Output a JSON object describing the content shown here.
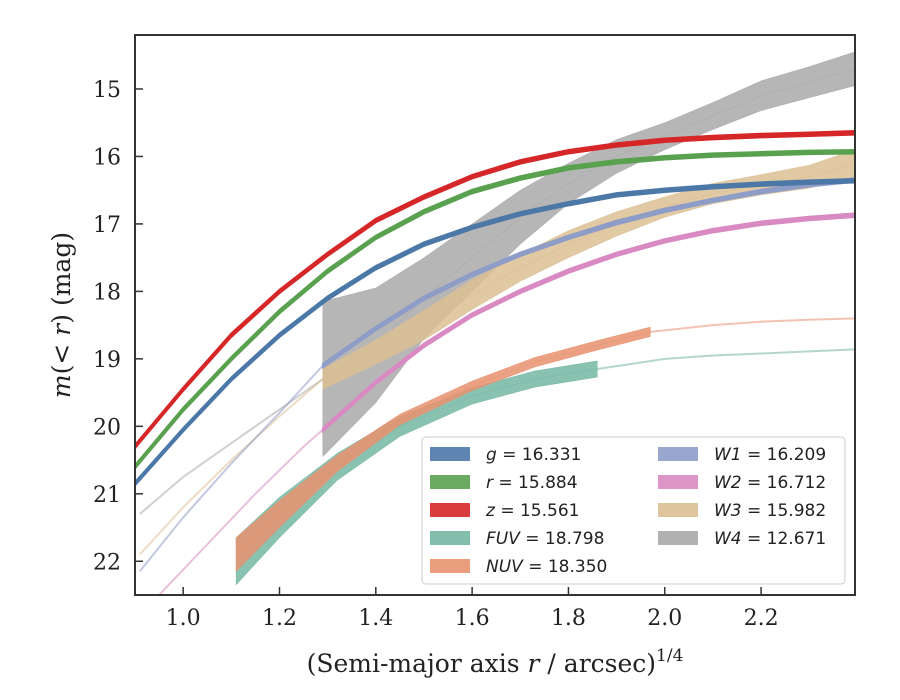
{
  "chart_data": {
    "type": "line",
    "title": "",
    "xlabel": {
      "prefix": "(Semi-major axis ",
      "var": "r",
      "suffix": " / arcsec)",
      "sup": "1/4"
    },
    "ylabel": {
      "prefix": "m(",
      "var": "< r",
      "suffix": ") (mag)"
    },
    "xlim": [
      0.9,
      2.395
    ],
    "ylim": [
      22.5,
      14.2
    ],
    "y_inverted": true,
    "xticks": [
      1.0,
      1.2,
      1.4,
      1.6,
      1.8,
      2.0,
      2.2
    ],
    "xtick_labels": [
      "1.0",
      "1.2",
      "1.4",
      "1.6",
      "1.8",
      "2.0",
      "2.2"
    ],
    "yticks": [
      15,
      16,
      17,
      18,
      19,
      20,
      21,
      22
    ],
    "ytick_labels": [
      "15",
      "16",
      "17",
      "18",
      "19",
      "20",
      "21",
      "22"
    ],
    "grid": false,
    "legend_position": "lower-right",
    "series": [
      {
        "name": "g",
        "legend_text": "g = 16.331",
        "color": "#4c78a8",
        "style": "band",
        "x": [
          0.9,
          1.0,
          1.1,
          1.2,
          1.3,
          1.4,
          1.5,
          1.6,
          1.7,
          1.8,
          1.9,
          2.0,
          2.1,
          2.2,
          2.3,
          2.395
        ],
        "y": [
          20.85,
          20.05,
          19.3,
          18.65,
          18.1,
          17.65,
          17.3,
          17.05,
          16.85,
          16.7,
          16.57,
          16.5,
          16.45,
          16.41,
          16.38,
          16.36
        ],
        "half_width": [
          0.03,
          0.03,
          0.03,
          0.03,
          0.03,
          0.03,
          0.03,
          0.03,
          0.03,
          0.03,
          0.03,
          0.03,
          0.03,
          0.03,
          0.03,
          0.03
        ]
      },
      {
        "name": "r",
        "legend_text": "r = 15.884",
        "color": "#59a14f",
        "style": "band",
        "x": [
          0.9,
          1.0,
          1.1,
          1.2,
          1.3,
          1.4,
          1.5,
          1.6,
          1.7,
          1.8,
          1.9,
          2.0,
          2.1,
          2.2,
          2.3,
          2.395
        ],
        "y": [
          20.6,
          19.75,
          19.0,
          18.3,
          17.7,
          17.2,
          16.82,
          16.52,
          16.32,
          16.17,
          16.08,
          16.02,
          15.98,
          15.96,
          15.94,
          15.93
        ],
        "half_width": [
          0.03,
          0.03,
          0.03,
          0.03,
          0.03,
          0.03,
          0.03,
          0.03,
          0.03,
          0.03,
          0.03,
          0.03,
          0.03,
          0.03,
          0.03,
          0.03
        ]
      },
      {
        "name": "z",
        "legend_text": "z = 15.561",
        "color": "#d62728",
        "style": "band",
        "x": [
          0.9,
          1.0,
          1.1,
          1.2,
          1.3,
          1.4,
          1.5,
          1.6,
          1.7,
          1.8,
          1.9,
          2.0,
          2.1,
          2.2,
          2.3,
          2.395
        ],
        "y": [
          20.3,
          19.45,
          18.65,
          18.0,
          17.45,
          16.95,
          16.6,
          16.3,
          16.08,
          15.93,
          15.83,
          15.76,
          15.72,
          15.69,
          15.67,
          15.65
        ],
        "half_width": [
          0.03,
          0.03,
          0.03,
          0.03,
          0.03,
          0.03,
          0.03,
          0.03,
          0.03,
          0.03,
          0.03,
          0.03,
          0.03,
          0.03,
          0.03,
          0.03
        ]
      },
      {
        "name": "FUV",
        "legend_text": "FUV = 18.798",
        "color": "#76b7a3",
        "style": "band",
        "x": [
          1.11,
          1.2,
          1.32,
          1.45,
          1.6,
          1.73,
          1.86
        ],
        "y": [
          22.0,
          21.35,
          20.6,
          20.0,
          19.55,
          19.3,
          19.15
        ],
        "half_width": [
          0.35,
          0.3,
          0.2,
          0.15,
          0.12,
          0.12,
          0.12
        ],
        "ext_x": [
          1.86,
          2.0,
          2.1,
          2.2,
          2.3,
          2.395
        ],
        "ext_y": [
          19.15,
          19.0,
          18.95,
          18.92,
          18.89,
          18.86
        ]
      },
      {
        "name": "NUV",
        "legend_text": "NUV = 18.350",
        "color": "#e8926f",
        "style": "band",
        "x": [
          1.11,
          1.2,
          1.32,
          1.45,
          1.6,
          1.73,
          1.86,
          1.97
        ],
        "y": [
          21.9,
          21.3,
          20.55,
          19.9,
          19.4,
          19.05,
          18.8,
          18.6
        ],
        "half_width": [
          0.25,
          0.2,
          0.12,
          0.08,
          0.07,
          0.07,
          0.07,
          0.07
        ],
        "ext_x": [
          1.97,
          2.1,
          2.2,
          2.3,
          2.395
        ],
        "ext_y": [
          18.6,
          18.5,
          18.45,
          18.42,
          18.4
        ]
      },
      {
        "name": "W1",
        "legend_text": "W1 = 16.209",
        "color": "#8e9cc8",
        "style": "band",
        "x": [
          1.29,
          1.4,
          1.5,
          1.6,
          1.7,
          1.8,
          1.9,
          2.0,
          2.1,
          2.2,
          2.3,
          2.395
        ],
        "y": [
          19.1,
          18.55,
          18.1,
          17.75,
          17.45,
          17.2,
          16.98,
          16.8,
          16.65,
          16.52,
          16.42,
          16.35
        ],
        "half_width": [
          0.03,
          0.03,
          0.03,
          0.03,
          0.03,
          0.03,
          0.03,
          0.03,
          0.03,
          0.03,
          0.03,
          0.03
        ],
        "ext_x": [
          0.91,
          1.0,
          1.1,
          1.2,
          1.29
        ],
        "ext_y": [
          22.15,
          21.35,
          20.55,
          19.8,
          19.1
        ]
      },
      {
        "name": "W2",
        "legend_text": "W2 = 16.712",
        "color": "#d98ac2",
        "style": "band",
        "x": [
          1.29,
          1.4,
          1.5,
          1.6,
          1.7,
          1.8,
          1.9,
          2.0,
          2.1,
          2.2,
          2.3,
          2.395
        ],
        "y": [
          20.05,
          19.35,
          18.8,
          18.35,
          18.0,
          17.7,
          17.45,
          17.25,
          17.1,
          16.99,
          16.92,
          16.87
        ],
        "half_width": [
          0.03,
          0.03,
          0.03,
          0.03,
          0.03,
          0.03,
          0.03,
          0.03,
          0.03,
          0.03,
          0.03,
          0.03
        ],
        "ext_x": [
          0.95,
          1.05,
          1.15,
          1.25,
          1.29
        ],
        "ext_y": [
          22.5,
          21.75,
          21.0,
          20.3,
          20.05
        ]
      },
      {
        "name": "W3",
        "legend_text": "W3 = 15.982",
        "color": "#dcbf94",
        "style": "band",
        "x": [
          1.29,
          1.4,
          1.5,
          1.6,
          1.7,
          1.8,
          1.9,
          2.0,
          2.1,
          2.2,
          2.3,
          2.395
        ],
        "y": [
          19.3,
          18.9,
          18.5,
          18.05,
          17.65,
          17.3,
          17.0,
          16.75,
          16.55,
          16.42,
          16.3,
          16.1
        ],
        "half_width": [
          0.15,
          0.18,
          0.22,
          0.22,
          0.2,
          0.2,
          0.18,
          0.15,
          0.15,
          0.15,
          0.17,
          0.2
        ],
        "ext_x": [
          0.91,
          1.0,
          1.1,
          1.2,
          1.29
        ],
        "ext_y": [
          21.9,
          21.2,
          20.5,
          19.85,
          19.3
        ]
      },
      {
        "name": "W4",
        "legend_text": "W4 = 12.671",
        "color": "#a9a9a9",
        "style": "band",
        "x": [
          1.29,
          1.4,
          1.5,
          1.6,
          1.7,
          1.8,
          1.9,
          2.0,
          2.1,
          2.2,
          2.3,
          2.395
        ],
        "y": [
          19.3,
          18.8,
          18.1,
          17.5,
          16.9,
          16.4,
          16.0,
          15.7,
          15.4,
          15.1,
          14.9,
          14.7
        ],
        "half_width": [
          1.15,
          0.85,
          0.6,
          0.5,
          0.4,
          0.3,
          0.25,
          0.2,
          0.2,
          0.22,
          0.23,
          0.25
        ],
        "ext_x": [
          0.91,
          1.0,
          1.1,
          1.2,
          1.29
        ],
        "ext_y": [
          21.3,
          20.75,
          20.25,
          19.75,
          19.3
        ]
      }
    ]
  }
}
